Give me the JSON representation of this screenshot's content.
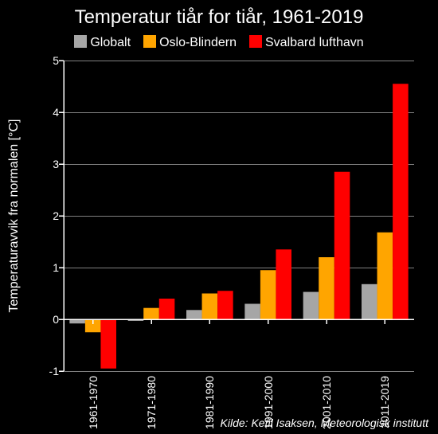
{
  "chart": {
    "type": "bar",
    "title": "Temperatur tiår for tiår, 1961-2019",
    "title_fontsize": 24,
    "ylabel": "Temperaturavvik fra normalen [°C]",
    "label_fontsize": 16,
    "background_color": "#000000",
    "text_color": "#ffffff",
    "axis_color": "#ffffff",
    "grid_color": "#ffffff",
    "grid_width": 0.5,
    "axis_width": 1.5,
    "tick_length": 6,
    "ylim": [
      -1,
      5
    ],
    "yticks": [
      -1,
      0,
      1,
      2,
      3,
      4,
      5
    ],
    "legend_fontsize": 16,
    "tick_fontsize": 14,
    "bar_group_gap": 0.2,
    "categories": [
      "1961-1970",
      "1971-1980",
      "1981-1990",
      "1991-2000",
      "2001-2010",
      "2011-2019"
    ],
    "series": [
      {
        "name": "Globalt",
        "color": "#a6a6a6",
        "values": [
          -0.08,
          -0.03,
          0.18,
          0.3,
          0.53,
          0.68
        ]
      },
      {
        "name": "Oslo-Blindern",
        "color": "#ffa500",
        "values": [
          -0.25,
          0.22,
          0.5,
          0.95,
          1.2,
          1.68
        ]
      },
      {
        "name": "Svalbard lufthavn",
        "color": "#ff0000",
        "values": [
          -0.95,
          0.4,
          0.55,
          1.35,
          2.85,
          4.55
        ]
      }
    ],
    "source": "Kilde: Ketil Isaksen, Meteorologisk institutt",
    "source_fontsize": 14
  }
}
